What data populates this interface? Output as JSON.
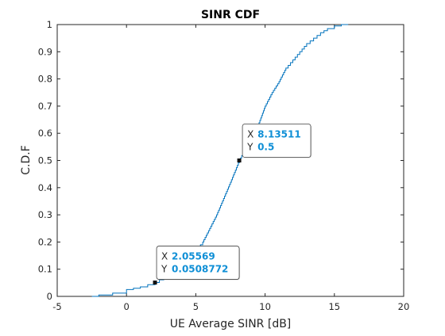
{
  "chart_data": {
    "type": "line",
    "title": "SINR CDF",
    "xlabel": "UE Average SINR [dB]",
    "ylabel": "C.D.F",
    "xlim": [
      -5,
      20
    ],
    "ylim": [
      0,
      1
    ],
    "x_ticks": [
      -5,
      0,
      5,
      10,
      15,
      20
    ],
    "y_ticks": [
      0,
      0.1,
      0.2,
      0.3,
      0.4,
      0.5,
      0.6,
      0.7,
      0.8,
      0.9,
      1
    ],
    "x_tick_labels": [
      "-5",
      "0",
      "5",
      "10",
      "15",
      "20"
    ],
    "y_tick_labels": [
      "0",
      "0.1",
      "0.2",
      "0.3",
      "0.4",
      "0.5",
      "0.6",
      "0.7",
      "0.8",
      "0.9",
      "1"
    ],
    "grid": false,
    "series": [
      {
        "color": "#0072bd",
        "x": [
          -2.5,
          -2.0,
          -1.0,
          0.0,
          0.5,
          1.0,
          2.06,
          3.0,
          4.0,
          5.0,
          5.5,
          6.0,
          6.5,
          7.0,
          7.5,
          8.14,
          9.0,
          9.5,
          10.0,
          10.5,
          11.0,
          11.5,
          12.0,
          12.5,
          13.0,
          13.5,
          14.0,
          14.5,
          15.0,
          15.5,
          16.0
        ],
        "y": [
          0.0,
          0.005,
          0.012,
          0.025,
          0.03,
          0.035,
          0.051,
          0.08,
          0.12,
          0.17,
          0.2,
          0.25,
          0.3,
          0.36,
          0.42,
          0.5,
          0.59,
          0.63,
          0.7,
          0.75,
          0.79,
          0.84,
          0.87,
          0.9,
          0.93,
          0.95,
          0.97,
          0.985,
          0.995,
          1.0,
          1.0
        ]
      }
    ],
    "datatips": [
      {
        "x_label": "X",
        "x_value": "8.13511",
        "y_label": "Y",
        "y_value": "0.5",
        "x": 8.13511,
        "y": 0.5
      },
      {
        "x_label": "X",
        "x_value": "2.05569",
        "y_label": "Y",
        "y_value": "0.0508772",
        "x": 2.05569,
        "y": 0.0508772
      }
    ]
  }
}
